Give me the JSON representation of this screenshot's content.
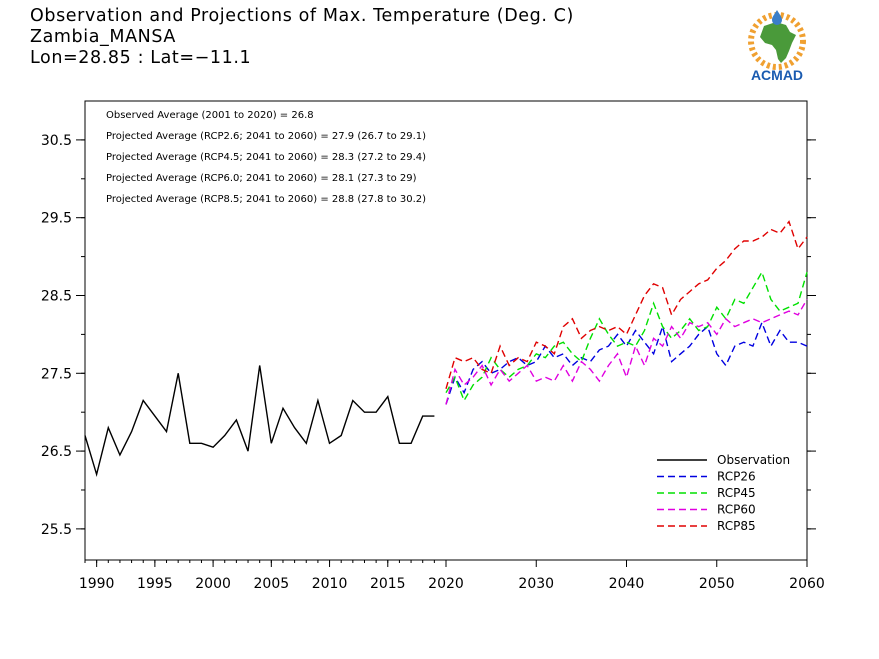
{
  "title_lines": [
    "Observation and Projections of Max. Temperature (Deg. C)",
    "Zambia_MANSA",
    "Lon=28.85 : Lat=−11.1"
  ],
  "logo": {
    "text": "ACMAD",
    "colors": {
      "sun": "#f0a030",
      "africa": "#4a9a3a",
      "drop": "#3a7ec8",
      "text": "#1a5bb0"
    }
  },
  "stats": [
    "Observed Average (2001 to 2020) = 26.8",
    "Projected Average (RCP2.6; 2041 to 2060) = 27.9 (26.7 to 29.1)",
    "Projected Average (RCP4.5; 2041 to 2060) = 28.3 (27.2 to 29.4)",
    "Projected Average (RCP6.0; 2041 to 2060) = 28.1 (27.3 to 29)",
    "Projected Average (RCP8.5; 2041 to 2060) = 28.8 (27.8 to 30.2)"
  ],
  "chart_data": {
    "type": "line",
    "xlim": [
      1989,
      2060
    ],
    "ylim": [
      25.1,
      31.0
    ],
    "x_ticks": [
      "1990",
      "1995",
      "2000",
      "2005",
      "2010",
      "2015",
      "2020",
      "2030",
      "2040",
      "2050",
      "2060"
    ],
    "y_ticks": [
      "25.5",
      "26.5",
      "27.5",
      "28.5",
      "29.5",
      "30.5"
    ],
    "grid": false,
    "legend_position": "bottom-right",
    "series": [
      {
        "name": "Observation",
        "color": "#000000",
        "dashed": false,
        "x": [
          1989,
          1990,
          1991,
          1992,
          1993,
          1994,
          1995,
          1996,
          1997,
          1998,
          1999,
          2000,
          2001,
          2002,
          2003,
          2004,
          2005,
          2006,
          2007,
          2008,
          2009,
          2010,
          2011,
          2012,
          2013,
          2014,
          2015,
          2016,
          2017,
          2018,
          2019
        ],
        "y": [
          26.7,
          26.2,
          26.8,
          26.45,
          26.75,
          27.15,
          26.95,
          26.75,
          27.5,
          26.6,
          26.6,
          26.55,
          26.7,
          26.9,
          26.5,
          27.6,
          26.6,
          27.05,
          26.8,
          26.6,
          27.15,
          26.6,
          26.7,
          27.15,
          27.0,
          27.0,
          27.2,
          26.6,
          26.6,
          26.95,
          26.95
        ]
      },
      {
        "name": "RCP26",
        "color": "#0000e0",
        "dashed": true,
        "x": [
          2020,
          2021,
          2022,
          2023,
          2024,
          2025,
          2026,
          2027,
          2028,
          2029,
          2030,
          2031,
          2032,
          2033,
          2034,
          2035,
          2036,
          2037,
          2038,
          2039,
          2040,
          2041,
          2042,
          2043,
          2044,
          2045,
          2046,
          2047,
          2048,
          2049,
          2050,
          2051,
          2052,
          2053,
          2054,
          2055,
          2056,
          2057,
          2058,
          2059,
          2060
        ],
        "y": [
          27.1,
          27.45,
          27.25,
          27.55,
          27.65,
          27.5,
          27.55,
          27.65,
          27.7,
          27.6,
          27.65,
          27.85,
          27.7,
          27.75,
          27.6,
          27.7,
          27.65,
          27.8,
          27.85,
          28.0,
          27.85,
          28.05,
          27.9,
          27.75,
          28.1,
          27.65,
          27.75,
          27.85,
          28.0,
          28.1,
          27.75,
          27.6,
          27.85,
          27.9,
          27.85,
          28.15,
          27.85,
          28.05,
          27.9,
          27.9,
          27.85
        ]
      },
      {
        "name": "RCP45",
        "color": "#00e000",
        "dashed": true,
        "x": [
          2020,
          2021,
          2022,
          2023,
          2024,
          2025,
          2026,
          2027,
          2028,
          2029,
          2030,
          2031,
          2032,
          2033,
          2034,
          2035,
          2036,
          2037,
          2038,
          2039,
          2040,
          2041,
          2042,
          2043,
          2044,
          2045,
          2046,
          2047,
          2048,
          2049,
          2050,
          2051,
          2052,
          2053,
          2054,
          2055,
          2056,
          2057,
          2058,
          2059,
          2060
        ],
        "y": [
          27.25,
          27.45,
          27.15,
          27.35,
          27.45,
          27.7,
          27.55,
          27.45,
          27.55,
          27.6,
          27.75,
          27.7,
          27.85,
          27.9,
          27.75,
          27.65,
          27.95,
          28.2,
          28.0,
          27.85,
          27.9,
          27.85,
          28.05,
          28.4,
          28.1,
          27.95,
          28.05,
          28.2,
          28.05,
          28.1,
          28.35,
          28.2,
          28.45,
          28.4,
          28.6,
          28.8,
          28.45,
          28.3,
          28.35,
          28.4,
          28.8
        ]
      },
      {
        "name": "RCP60",
        "color": "#e000e0",
        "dashed": true,
        "x": [
          2020,
          2021,
          2022,
          2023,
          2024,
          2025,
          2026,
          2027,
          2028,
          2029,
          2030,
          2031,
          2032,
          2033,
          2034,
          2035,
          2036,
          2037,
          2038,
          2039,
          2040,
          2041,
          2042,
          2043,
          2044,
          2045,
          2046,
          2047,
          2048,
          2049,
          2050,
          2051,
          2052,
          2053,
          2054,
          2055,
          2056,
          2057,
          2058,
          2059,
          2060
        ],
        "y": [
          27.1,
          27.55,
          27.35,
          27.45,
          27.6,
          27.35,
          27.55,
          27.4,
          27.5,
          27.6,
          27.4,
          27.45,
          27.4,
          27.6,
          27.4,
          27.65,
          27.55,
          27.4,
          27.6,
          27.75,
          27.45,
          27.85,
          27.6,
          27.95,
          27.85,
          28.1,
          27.95,
          28.15,
          28.1,
          28.15,
          28.0,
          28.2,
          28.1,
          28.15,
          28.2,
          28.15,
          28.2,
          28.25,
          28.3,
          28.25,
          28.45
        ]
      },
      {
        "name": "RCP85",
        "color": "#e00000",
        "dashed": true,
        "x": [
          2020,
          2021,
          2022,
          2023,
          2024,
          2025,
          2026,
          2027,
          2028,
          2029,
          2030,
          2031,
          2032,
          2033,
          2034,
          2035,
          2036,
          2037,
          2038,
          2039,
          2040,
          2041,
          2042,
          2043,
          2044,
          2045,
          2046,
          2047,
          2048,
          2049,
          2050,
          2051,
          2052,
          2053,
          2054,
          2055,
          2056,
          2057,
          2058,
          2059,
          2060
        ],
        "y": [
          27.3,
          27.7,
          27.65,
          27.7,
          27.55,
          27.5,
          27.85,
          27.6,
          27.7,
          27.65,
          27.9,
          27.85,
          27.75,
          28.1,
          28.2,
          27.95,
          28.05,
          28.1,
          28.05,
          28.1,
          28.0,
          28.25,
          28.5,
          28.65,
          28.6,
          28.25,
          28.45,
          28.55,
          28.65,
          28.7,
          28.85,
          28.95,
          29.1,
          29.2,
          29.2,
          29.25,
          29.35,
          29.3,
          29.45,
          29.1,
          29.25
        ]
      }
    ]
  }
}
